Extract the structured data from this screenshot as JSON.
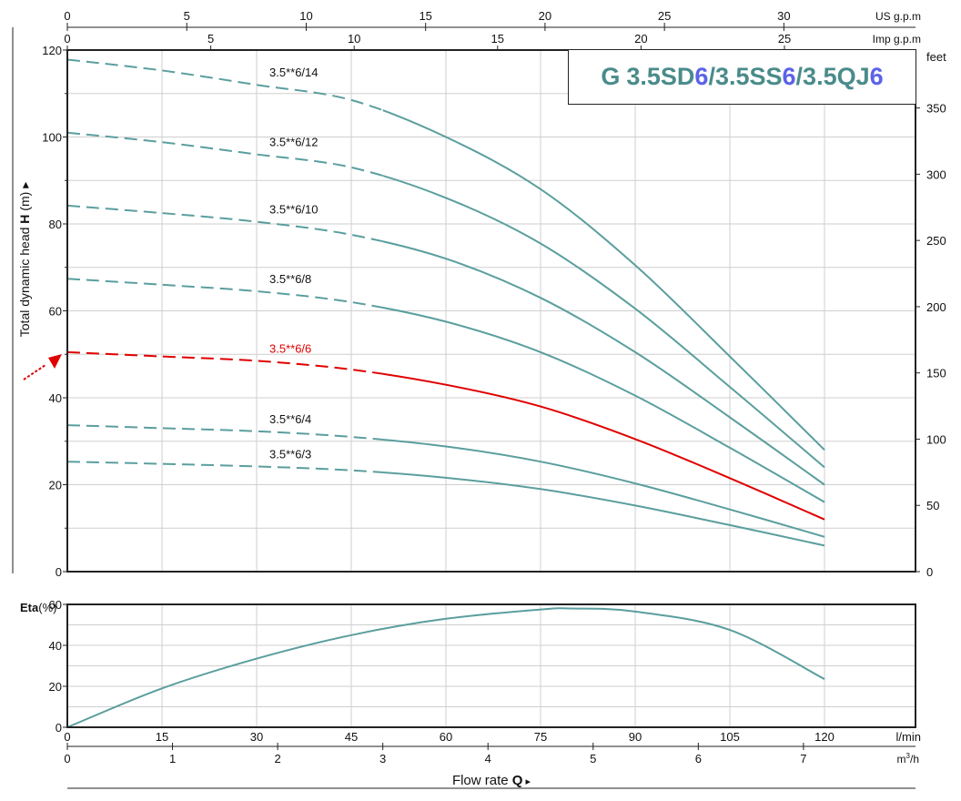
{
  "chart_data": [
    {
      "type": "line",
      "name": "head-curve",
      "ylabel_prefix": "Total dynamic head",
      "ylabel_symbol": "H",
      "ylabel_unit": "(m)",
      "xlim": [
        0,
        120
      ],
      "ylim": [
        0,
        120
      ],
      "y_ticks": [
        "0",
        "20",
        "40",
        "60",
        "80",
        "100",
        "120"
      ],
      "y_right_label": "feet",
      "y_right_ticks": [
        "0",
        "50",
        "100",
        "150",
        "200",
        "250",
        "300",
        "350"
      ],
      "top_axis_1_label": "US g.p.m",
      "top_axis_1_ticks": [
        "0",
        "5",
        "10",
        "15",
        "20",
        "25",
        "30"
      ],
      "top_axis_2_label": "Imp g.p.m",
      "top_axis_2_ticks": [
        "0",
        "5",
        "10",
        "15",
        "20",
        "25"
      ],
      "title_parts": [
        "G",
        "3.5SD",
        "6",
        "/3.5SS",
        "6",
        "/3.5QJ",
        "6"
      ],
      "highlight_color": "#e00000",
      "series_color": "#5b9e9e",
      "title_accent_color": "#5b63e8",
      "x": [
        0,
        15,
        30,
        45,
        60,
        75,
        90,
        105,
        120
      ],
      "series": [
        {
          "name": "3.5**6/14",
          "values": [
            117.8,
            115.3,
            112.0,
            108.5,
            100.0,
            88.0,
            70.5,
            49.5,
            28.0
          ],
          "highlight": false
        },
        {
          "name": "3.5**6/12",
          "values": [
            101.0,
            98.8,
            96.0,
            93.0,
            86.0,
            75.5,
            60.5,
            42.5,
            24.0
          ],
          "highlight": false
        },
        {
          "name": "3.5**6/10",
          "values": [
            84.2,
            82.5,
            80.5,
            77.5,
            72.0,
            63.0,
            50.5,
            35.5,
            20.0
          ],
          "highlight": false
        },
        {
          "name": "3.5**6/8",
          "values": [
            67.4,
            66.0,
            64.5,
            62.0,
            57.5,
            50.5,
            40.5,
            28.5,
            16.0
          ],
          "highlight": false
        },
        {
          "name": "3.5**6/6",
          "values": [
            50.5,
            49.5,
            48.5,
            46.5,
            43.0,
            38.0,
            30.5,
            21.5,
            12.0
          ],
          "highlight": true
        },
        {
          "name": "3.5**6/4",
          "values": [
            33.7,
            33.0,
            32.3,
            31.0,
            28.8,
            25.3,
            20.3,
            14.3,
            8.0
          ],
          "highlight": false
        },
        {
          "name": "3.5**6/3",
          "values": [
            25.3,
            24.8,
            24.2,
            23.3,
            21.6,
            19.0,
            15.2,
            10.7,
            6.0
          ],
          "highlight": false
        }
      ]
    },
    {
      "type": "line",
      "name": "efficiency-curve",
      "ylabel_symbol": "Eta",
      "ylabel_unit": "(%)",
      "ylim": [
        0,
        60
      ],
      "y_ticks": [
        "0",
        "20",
        "40",
        "60"
      ],
      "x_ticks": [
        "0",
        "15",
        "30",
        "45",
        "60",
        "75",
        "90",
        "105",
        "120"
      ],
      "x_unit": "l/min",
      "x2_ticks": [
        "0",
        "1",
        "2",
        "3",
        "4",
        "5",
        "6",
        "7"
      ],
      "x2_unit_base": "m",
      "x2_unit_sup": "3",
      "x2_unit_tail": "/h",
      "xlabel_prefix": "Flow rate",
      "xlabel_symbol": "Q",
      "x": [
        0,
        15,
        30,
        45,
        60,
        75,
        80,
        90,
        105,
        120
      ],
      "series": [
        {
          "values": [
            0,
            19,
            33.5,
            45,
            53,
            57.5,
            58,
            56.5,
            47.5,
            23.5
          ]
        }
      ]
    }
  ]
}
